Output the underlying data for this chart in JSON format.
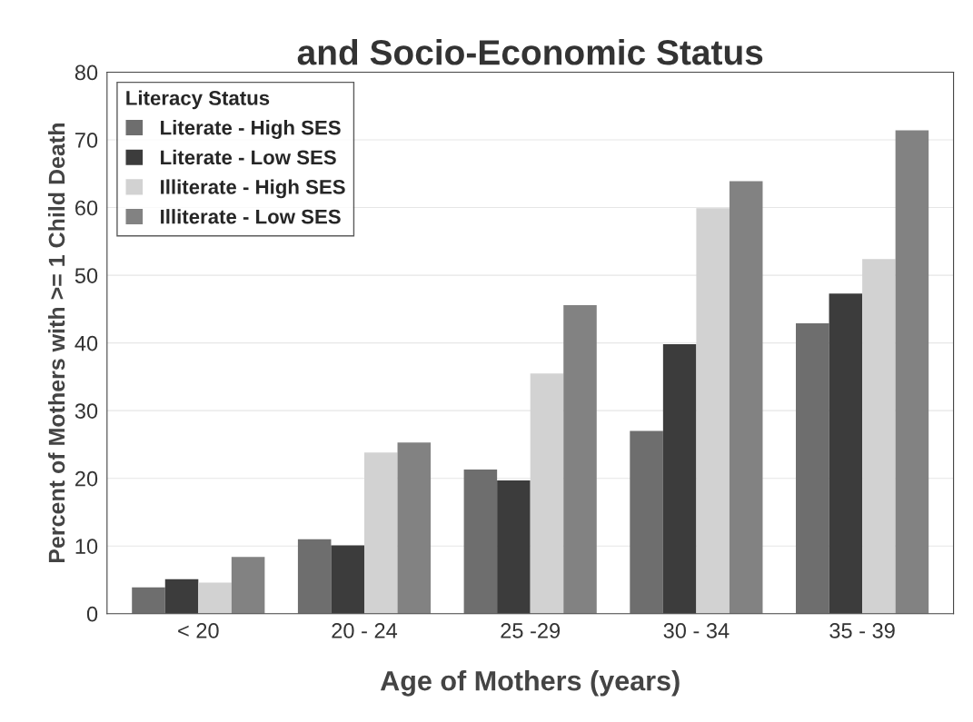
{
  "chart_data": {
    "type": "bar",
    "title": "and Socio-Economic Status",
    "xlabel": "Age of Mothers (years)",
    "ylabel": "Percent of Mothers with >= 1 Child Death",
    "legend_title": "Literacy Status",
    "legend": "top left",
    "grid": "y",
    "categories": [
      "< 20",
      "20 - 24",
      "25 -29",
      "30 - 34",
      "35 - 39"
    ],
    "ylim": [
      0,
      80
    ],
    "yticks": [
      0,
      10,
      20,
      30,
      40,
      50,
      60,
      70,
      80
    ],
    "series": [
      {
        "name": "Literate - High SES",
        "color": "#6e6e6e",
        "values": [
          3.9,
          11,
          21.3,
          27,
          42.9
        ]
      },
      {
        "name": "Literate - Low SES",
        "color": "#3c3c3c",
        "values": [
          5.1,
          10.1,
          19.7,
          39.8,
          47.3
        ]
      },
      {
        "name": "Illiterate - High SES",
        "color": "#d2d2d2",
        "values": [
          4.6,
          23.8,
          35.5,
          59.9,
          52.4
        ]
      },
      {
        "name": "Illiterate - Low SES",
        "color": "#828282",
        "values": [
          8.4,
          25.3,
          45.6,
          63.9,
          71.4
        ]
      }
    ]
  }
}
